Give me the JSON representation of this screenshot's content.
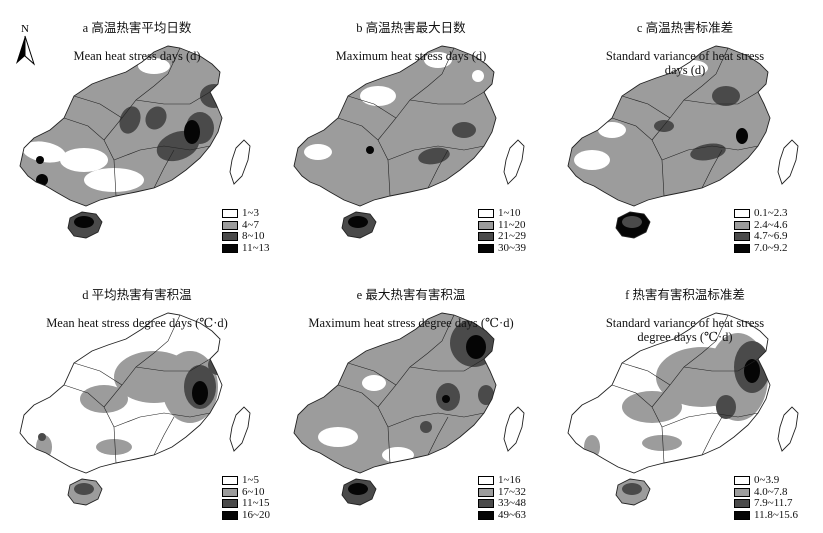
{
  "colors": {
    "class1": "#ffffff",
    "class2": "#9c9c9c",
    "class3": "#4a4a4a",
    "class4": "#050505",
    "outline": "#222222"
  },
  "north_arrow": {
    "label": "N",
    "icon": "north-arrow-icon"
  },
  "panels": [
    {
      "id": "a",
      "title_cn": "a 高温热害平均日数",
      "title_en": "Mean heat stress days (d)",
      "legend": [
        "1~3",
        "4~7",
        "8~10",
        "11~13"
      ]
    },
    {
      "id": "b",
      "title_cn": "b 高温热害最大日数",
      "title_en": "Maximum heat stress days (d)",
      "legend": [
        "1~10",
        "11~20",
        "21~29",
        "30~39"
      ]
    },
    {
      "id": "c",
      "title_cn": "c 高温热害标准差",
      "title_en": "Standard variance of heat stress\ndays (d)",
      "legend": [
        "0.1~2.3",
        "2.4~4.6",
        "4.7~6.9",
        "7.0~9.2"
      ]
    },
    {
      "id": "d",
      "title_cn": "d 平均热害有害积温",
      "title_en": "Mean heat stress degree days (℃·d)",
      "legend": [
        "1~5",
        "6~10",
        "11~15",
        "16~20"
      ]
    },
    {
      "id": "e",
      "title_cn": "e 最大热害有害积温",
      "title_en": "Maximum heat stress degree days (℃·d)",
      "legend": [
        "1~16",
        "17~32",
        "33~48",
        "49~63"
      ]
    },
    {
      "id": "f",
      "title_cn": "f 热害有害积温标准差",
      "title_en": "Standard variance of heat stress\ndegree days (℃·d)",
      "legend": [
        "0~3.9",
        "4.0~7.8",
        "7.9~11.7",
        "11.8~15.6"
      ]
    }
  ]
}
